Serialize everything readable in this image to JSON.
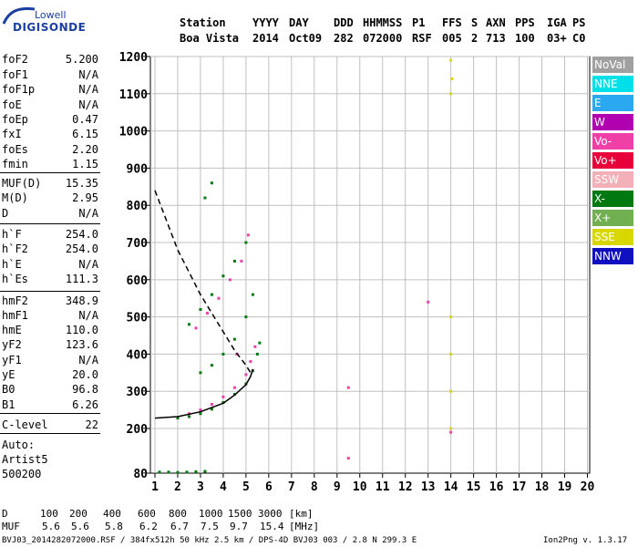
{
  "logo": {
    "top": "Lowell",
    "bottom": "DIGISONDE"
  },
  "header": {
    "row1": [
      "Station",
      "YYYY",
      "DAY",
      "DDD",
      "HHMMSS",
      "P1",
      "FFS",
      "S",
      "AXN",
      "PPS",
      "IGA",
      "PS"
    ],
    "row2": [
      "Boa Vista",
      "2014",
      "Oct09",
      "282",
      "072000",
      "RSF",
      "005",
      "2",
      "713",
      "100",
      "03+",
      "C0"
    ]
  },
  "params": [
    {
      "name": "foF2",
      "value": "5.200"
    },
    {
      "name": "foF1",
      "value": "N/A"
    },
    {
      "name": "foF1p",
      "value": "N/A"
    },
    {
      "name": "foE",
      "value": "N/A"
    },
    {
      "name": "foEp",
      "value": "0.47"
    },
    {
      "name": "fxI",
      "value": "6.15"
    },
    {
      "name": "foEs",
      "value": "2.20"
    },
    {
      "name": "fmin",
      "value": "1.15"
    },
    {
      "name": "MUF(D)",
      "value": "15.35"
    },
    {
      "name": "M(D)",
      "value": "2.95"
    },
    {
      "name": "D",
      "value": "N/A"
    },
    {
      "name": "h`F",
      "value": "254.0"
    },
    {
      "name": "h`F2",
      "value": "254.0"
    },
    {
      "name": "h`E",
      "value": "N/A"
    },
    {
      "name": "h`Es",
      "value": "111.3"
    },
    {
      "name": "hmF2",
      "value": "348.9"
    },
    {
      "name": "hmF1",
      "value": "N/A"
    },
    {
      "name": "hmE",
      "value": "110.0"
    },
    {
      "name": "yF2",
      "value": "123.6"
    },
    {
      "name": "yF1",
      "value": "N/A"
    },
    {
      "name": "yE",
      "value": "20.0"
    },
    {
      "name": "B0",
      "value": "96.8"
    },
    {
      "name": "B1",
      "value": "6.26"
    },
    {
      "name": "C-level",
      "value": "22"
    }
  ],
  "auto": {
    "line1": "Auto:",
    "line2": "Artist5",
    "line3": "500200"
  },
  "legend": [
    {
      "label": "NoVal",
      "color": "#a0a0a0"
    },
    {
      "label": "NNE",
      "color": "#00e0e8"
    },
    {
      "label": "E",
      "color": "#2aa8f0"
    },
    {
      "label": "W",
      "color": "#b000b0"
    },
    {
      "label": "Vo-",
      "color": "#f040a8"
    },
    {
      "label": "Vo+",
      "color": "#e8003a"
    },
    {
      "label": "SSW",
      "color": "#f4b0b8"
    },
    {
      "label": "X-",
      "color": "#007a10"
    },
    {
      "label": "X+",
      "color": "#70b050"
    },
    {
      "label": "SSE",
      "color": "#d8d800"
    },
    {
      "label": "NNW",
      "color": "#1010c0"
    }
  ],
  "mufTable": {
    "d_label": "D",
    "d_values": [
      "100",
      "200",
      "400",
      "600",
      "800",
      "1000",
      "1500",
      "3000"
    ],
    "d_unit": "[km]",
    "muf_label": "MUF",
    "muf_values": [
      "5.6",
      "5.6",
      "5.8",
      "6.2",
      "6.7",
      "7.5",
      "9.7",
      "15.4"
    ],
    "muf_unit": "[MHz]"
  },
  "footer": {
    "left": "BVJ03_2014282072000.RSF / 384fx512h 50 kHz 2.5 km / DPS-4D BVJ03 003 / 2.8 N 299.3 E",
    "right": "Ion2Png v. 1.3.17"
  },
  "chart_data": {
    "type": "scatter",
    "xlabel": "",
    "ylabel": "",
    "xlim": [
      0.8,
      20.1
    ],
    "ylim": [
      80,
      1200
    ],
    "xticks": [
      1,
      2,
      3,
      4,
      5,
      6,
      7,
      8,
      9,
      10,
      11,
      12,
      13,
      14,
      15,
      16,
      17,
      18,
      19,
      20
    ],
    "yticks": [
      80,
      200,
      300,
      400,
      500,
      600,
      700,
      800,
      900,
      1000,
      1100,
      1200
    ],
    "grid": true,
    "series": [
      {
        "name": "traces",
        "color": "#007a10",
        "points": [
          [
            1.2,
            83
          ],
          [
            1.6,
            83
          ],
          [
            2.0,
            82
          ],
          [
            2.4,
            83
          ],
          [
            2.8,
            84
          ],
          [
            3.2,
            85
          ],
          [
            2.0,
            228
          ],
          [
            2.5,
            232
          ],
          [
            3.0,
            240
          ],
          [
            3.5,
            252
          ],
          [
            4.0,
            270
          ],
          [
            4.5,
            292
          ],
          [
            5.0,
            320
          ],
          [
            5.3,
            355
          ],
          [
            5.5,
            400
          ],
          [
            5.6,
            430
          ],
          [
            3.0,
            350
          ],
          [
            3.5,
            370
          ],
          [
            4.0,
            400
          ],
          [
            4.5,
            440
          ],
          [
            5.0,
            500
          ],
          [
            5.3,
            560
          ],
          [
            2.5,
            480
          ],
          [
            3.0,
            520
          ],
          [
            3.5,
            560
          ],
          [
            4.0,
            610
          ],
          [
            4.5,
            650
          ],
          [
            5.0,
            700
          ],
          [
            3.2,
            820
          ],
          [
            3.5,
            860
          ]
        ]
      },
      {
        "name": "vertical-o",
        "color": "#f040a8",
        "points": [
          [
            2.5,
            240
          ],
          [
            3.0,
            250
          ],
          [
            3.5,
            265
          ],
          [
            4.0,
            285
          ],
          [
            4.5,
            310
          ],
          [
            5.0,
            345
          ],
          [
            5.2,
            380
          ],
          [
            2.8,
            470
          ],
          [
            3.3,
            510
          ],
          [
            3.8,
            550
          ],
          [
            4.3,
            600
          ],
          [
            4.8,
            650
          ],
          [
            5.1,
            720
          ],
          [
            9.5,
            120
          ],
          [
            9.5,
            310
          ],
          [
            13.0,
            540
          ],
          [
            14.0,
            190
          ],
          [
            4.6,
            400
          ],
          [
            5.4,
            420
          ]
        ]
      },
      {
        "name": "sse-trace",
        "color": "#d8d800",
        "points": [
          [
            14.0,
            200
          ],
          [
            14.0,
            300
          ],
          [
            14.0,
            400
          ],
          [
            14.0,
            500
          ],
          [
            14.0,
            1100
          ],
          [
            14.05,
            1140
          ],
          [
            14.0,
            1190
          ]
        ]
      }
    ],
    "lines": [
      {
        "name": "profile",
        "style": "solid",
        "points": [
          [
            1.0,
            228
          ],
          [
            2.0,
            232
          ],
          [
            3.0,
            245
          ],
          [
            4.0,
            268
          ],
          [
            4.5,
            290
          ],
          [
            5.0,
            318
          ],
          [
            5.2,
            340
          ],
          [
            5.3,
            360
          ]
        ]
      },
      {
        "name": "muf-curve",
        "style": "dashed",
        "points": [
          [
            1.0,
            840
          ],
          [
            1.5,
            760
          ],
          [
            2.0,
            680
          ],
          [
            2.5,
            620
          ],
          [
            3.0,
            560
          ],
          [
            3.5,
            510
          ],
          [
            4.0,
            460
          ],
          [
            4.5,
            410
          ],
          [
            5.0,
            370
          ],
          [
            5.2,
            350
          ]
        ]
      }
    ]
  }
}
